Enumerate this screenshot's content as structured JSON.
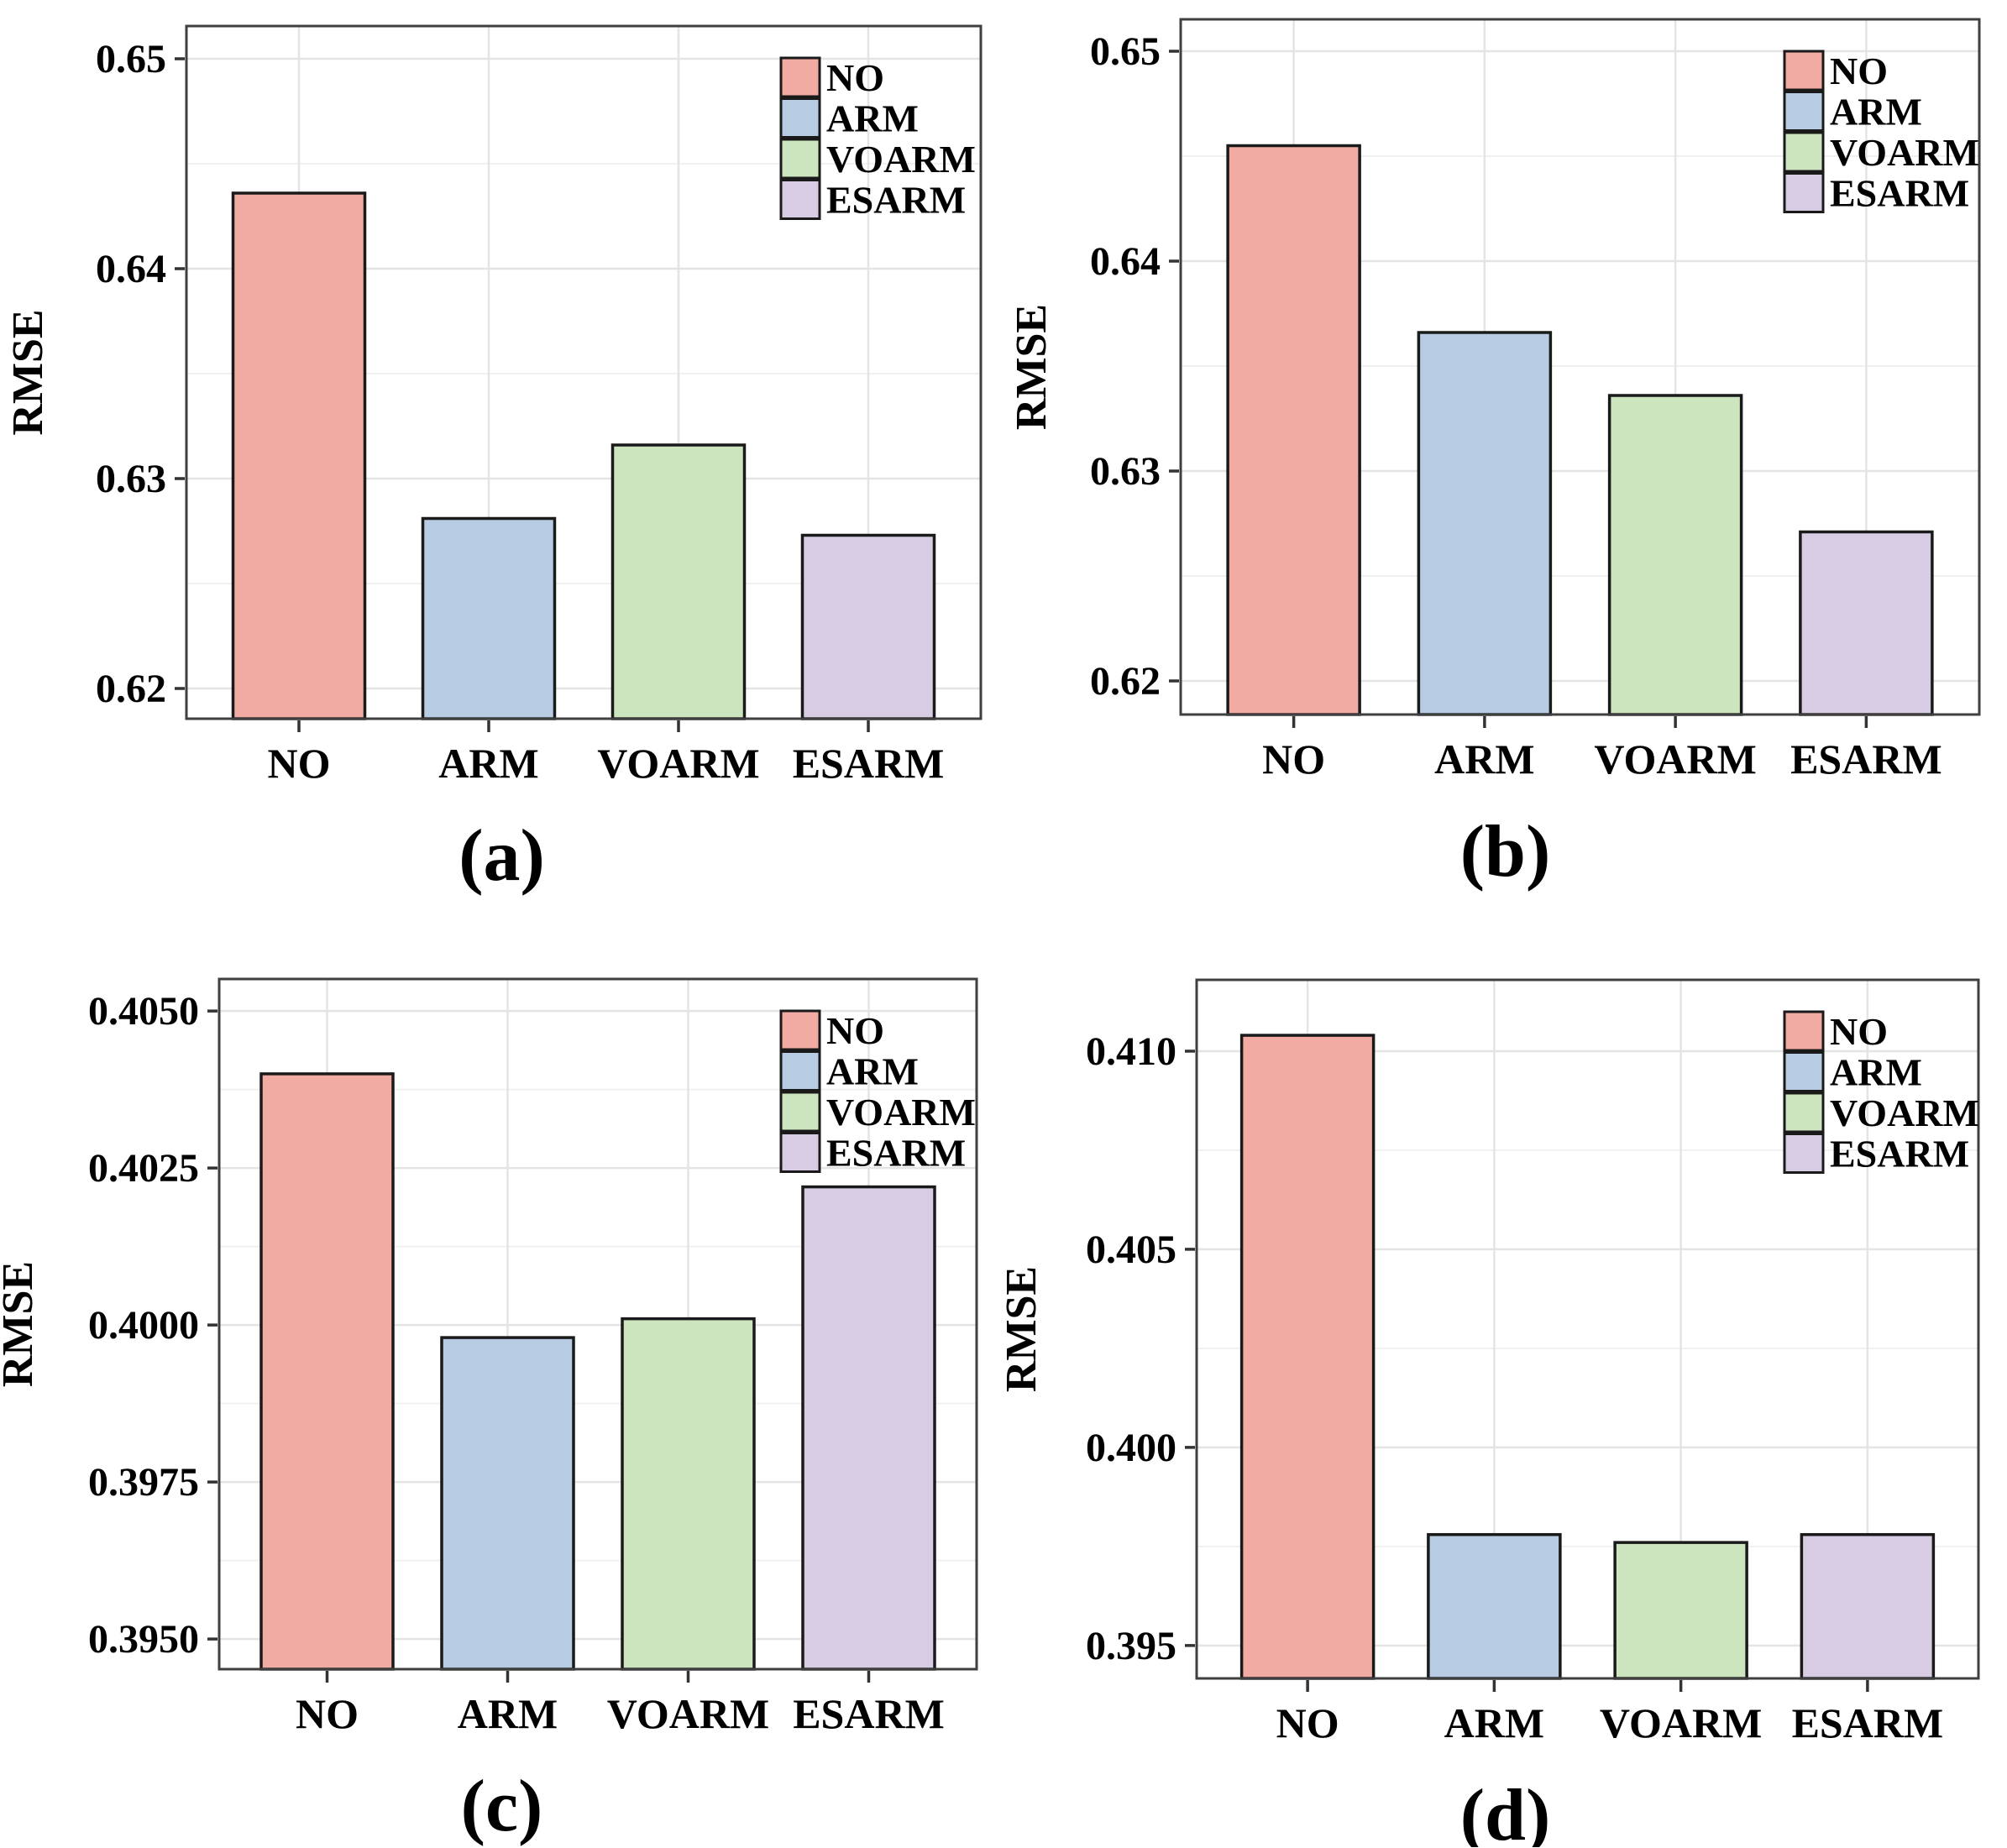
{
  "figure": {
    "y_axis_label": "RMSE",
    "categories": [
      "NO",
      "ARM",
      "VOARM",
      "ESARM"
    ],
    "legend": {
      "position": "top-right",
      "entries": [
        {
          "label": "NO",
          "color": "#F1ABA3"
        },
        {
          "label": "ARM",
          "color": "#B7CCE2"
        },
        {
          "label": "VOARM",
          "color": "#CCE5BF"
        },
        {
          "label": "ESARM",
          "color": "#D8CCE4"
        }
      ]
    },
    "style_colors": {
      "bar_border": "#1a1a1a",
      "panel_border": "#3f3f3f",
      "tick_mark": "#333333",
      "grid_major": "#e4e4e4",
      "grid_minor": "#f0f0f0",
      "background": "#ffffff"
    }
  },
  "chart_data": [
    {
      "type": "bar",
      "caption": "(a)",
      "ylabel": "RMSE",
      "categories": [
        "NO",
        "ARM",
        "VOARM",
        "ESARM"
      ],
      "values": [
        0.6436,
        0.6281,
        0.6316,
        0.6273
      ],
      "yticks": [
        0.62,
        0.63,
        0.64,
        0.65
      ],
      "ytick_labels": [
        "0.62",
        "0.63",
        "0.64",
        "0.65"
      ],
      "ylim": [
        0.61856,
        0.65156
      ],
      "grid": true,
      "legend_position": "top-right"
    },
    {
      "type": "bar",
      "caption": "(b)",
      "ylabel": "RMSE",
      "categories": [
        "NO",
        "ARM",
        "VOARM",
        "ESARM"
      ],
      "values": [
        0.6455,
        0.6366,
        0.6336,
        0.6271
      ],
      "yticks": [
        0.62,
        0.63,
        0.64,
        0.65
      ],
      "ytick_labels": [
        "0.62",
        "0.63",
        "0.64",
        "0.65"
      ],
      "ylim": [
        0.6184,
        0.65152
      ],
      "grid": true,
      "legend_position": "top-right"
    },
    {
      "type": "bar",
      "caption": "(c)",
      "ylabel": "RMSE",
      "categories": [
        "NO",
        "ARM",
        "VOARM",
        "ESARM"
      ],
      "values": [
        0.404,
        0.3998,
        0.4001,
        0.4022
      ],
      "yticks": [
        0.395,
        0.3975,
        0.4,
        0.4025,
        0.405
      ],
      "ytick_labels": [
        "0.3950",
        "0.3975",
        "0.4000",
        "0.4025",
        "0.4050"
      ],
      "ylim": [
        0.39452,
        0.40551
      ],
      "grid": true,
      "legend_position": "top-right"
    },
    {
      "type": "bar",
      "caption": "(d)",
      "ylabel": "RMSE",
      "categories": [
        "NO",
        "ARM",
        "VOARM",
        "ESARM"
      ],
      "values": [
        0.4104,
        0.3978,
        0.3976,
        0.3978
      ],
      "yticks": [
        0.395,
        0.4,
        0.405,
        0.41
      ],
      "ytick_labels": [
        "0.395",
        "0.400",
        "0.405",
        "0.410"
      ],
      "ylim": [
        0.39417,
        0.4118
      ],
      "grid": true,
      "legend_position": "top-right"
    }
  ]
}
